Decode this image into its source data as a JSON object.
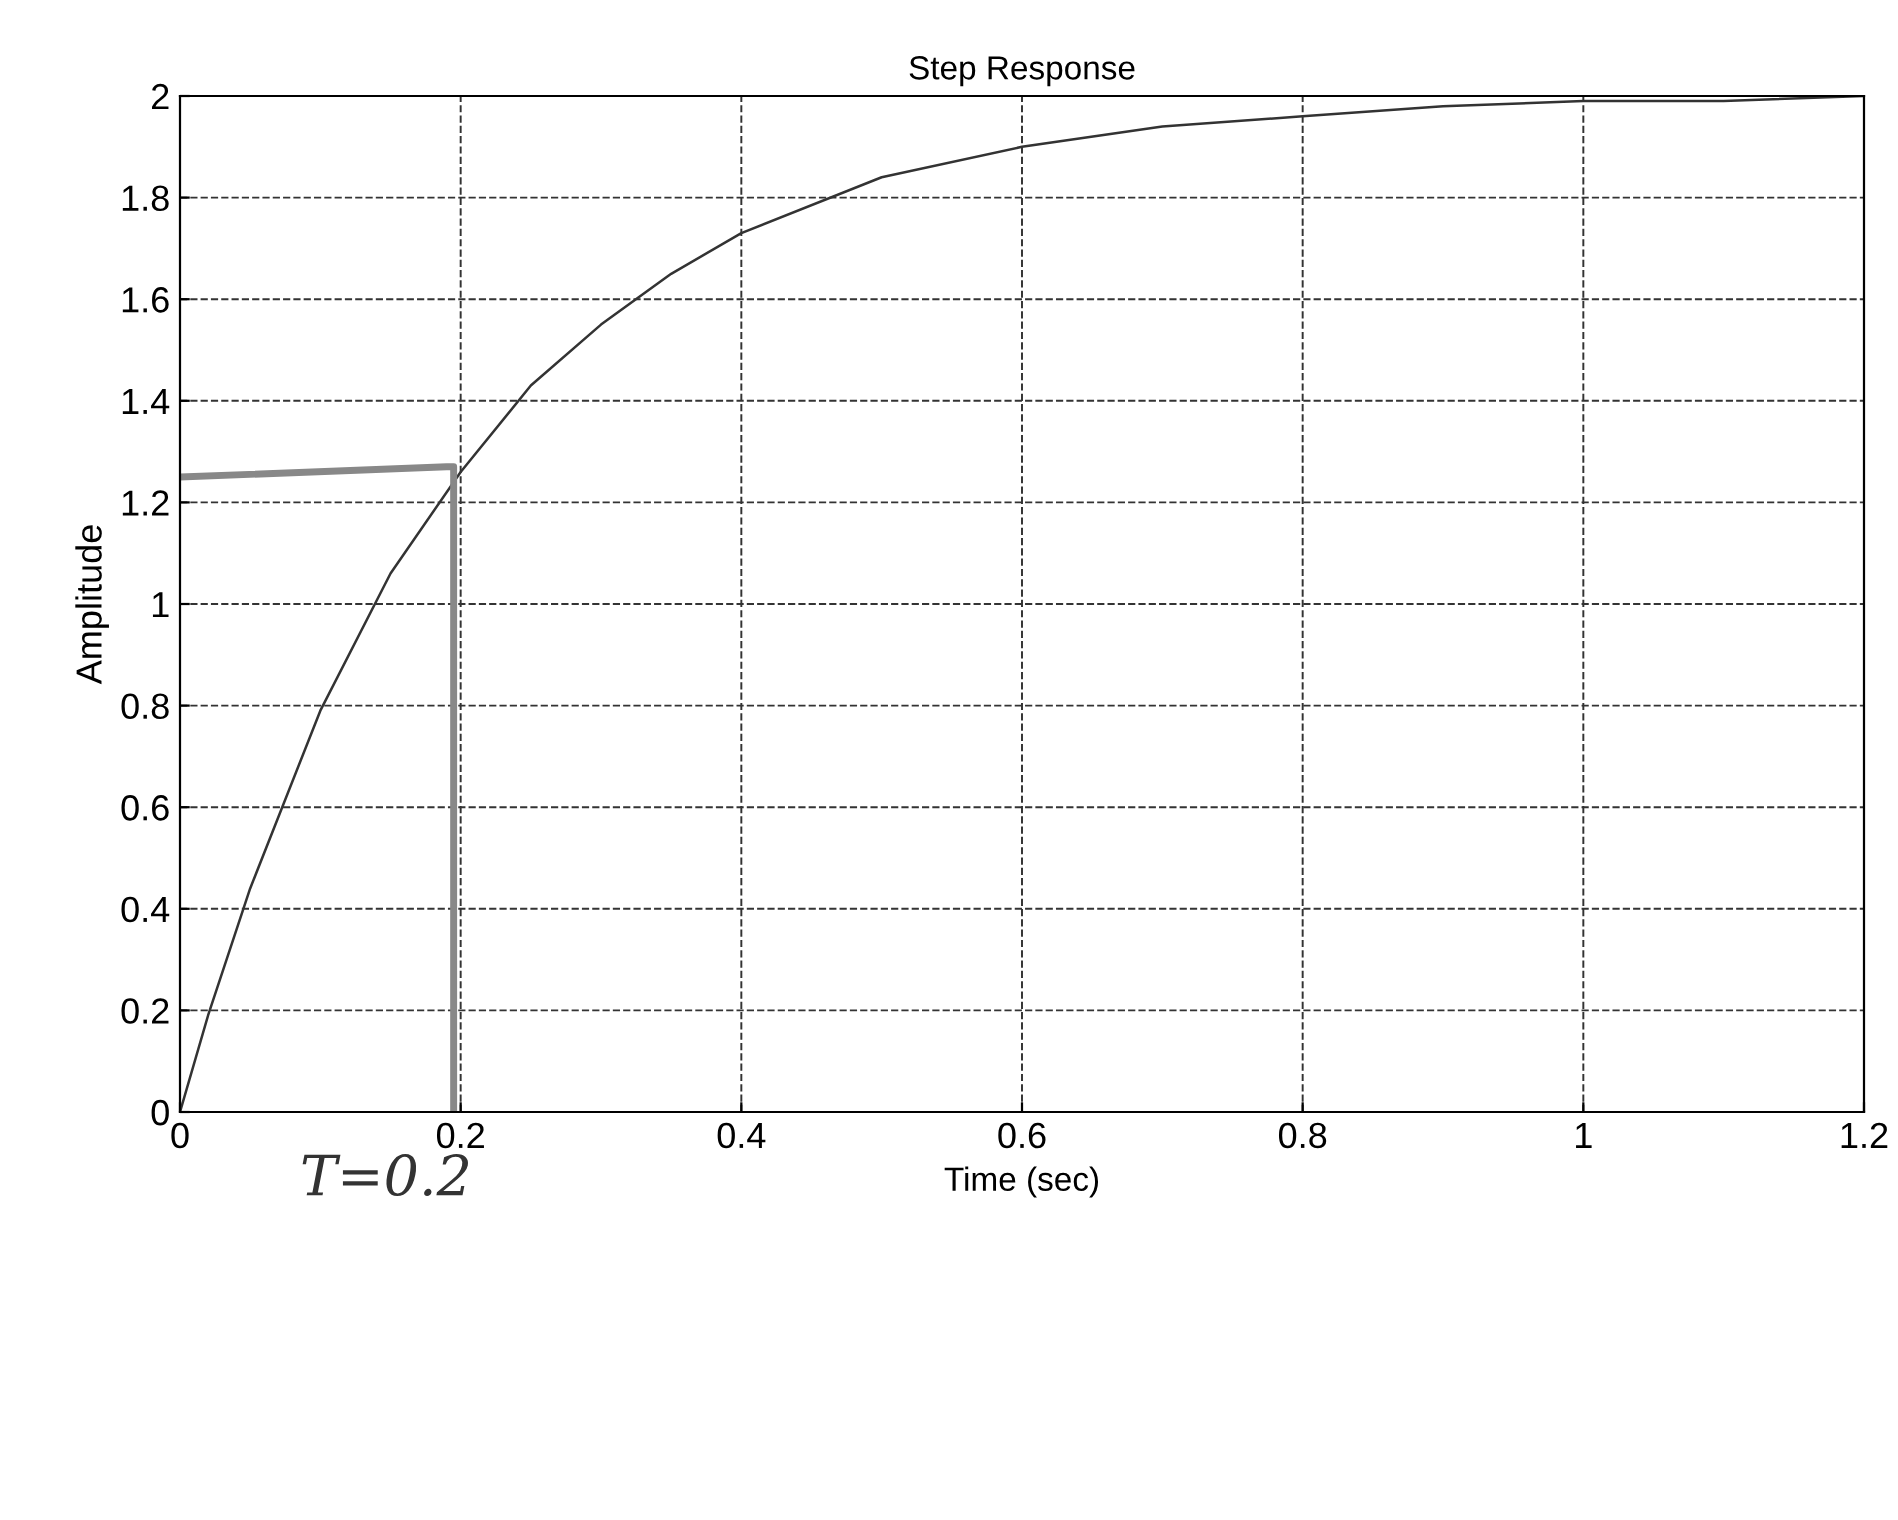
{
  "chart_data": {
    "type": "line",
    "title": "Step Response",
    "xlabel": "Time (sec)",
    "ylabel": "Amplitude",
    "x": [
      0,
      0.02,
      0.05,
      0.1,
      0.15,
      0.2,
      0.25,
      0.3,
      0.35,
      0.4,
      0.5,
      0.6,
      0.7,
      0.8,
      0.9,
      1.0,
      1.1,
      1.2
    ],
    "series": [
      {
        "color": "#333333",
        "values": [
          0,
          0.19,
          0.44,
          0.79,
          1.06,
          1.26,
          1.43,
          1.55,
          1.65,
          1.73,
          1.84,
          1.9,
          1.94,
          1.96,
          1.98,
          1.99,
          1.99,
          2.0
        ]
      },
      {
        "color": "#888888",
        "x": [
          0,
          0.19,
          0.195,
          0.195
        ],
        "values": [
          1.25,
          1.27,
          1.27,
          0
        ]
      }
    ],
    "xlim": [
      0,
      1.2
    ],
    "ylim": [
      0,
      2
    ],
    "xticks": [
      0,
      0.2,
      0.4,
      0.6,
      0.8,
      1,
      1.2
    ],
    "yticks": [
      0,
      0.2,
      0.4,
      0.6,
      0.8,
      1,
      1.2,
      1.4,
      1.6,
      1.8,
      2
    ],
    "grid": true,
    "line_style": "solid",
    "annotations": [
      "T=0.2"
    ]
  }
}
